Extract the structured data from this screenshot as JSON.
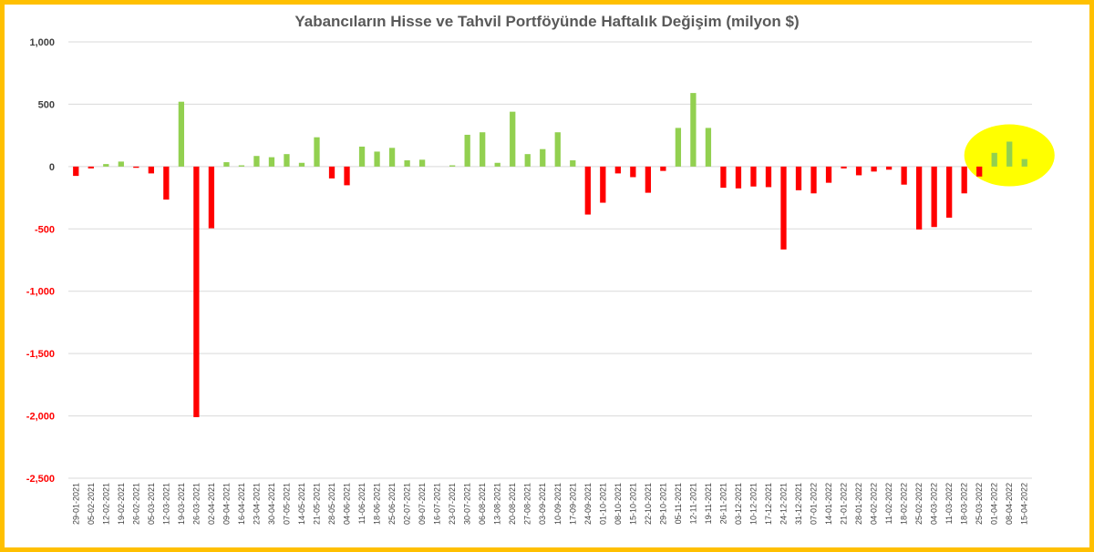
{
  "chart_data": {
    "type": "bar",
    "title": "Yabancıların Hisse ve Tahvil Portföyünde Haftalık Değişim (milyon $)",
    "xlabel": "",
    "ylabel": "",
    "ylim": [
      -2500,
      1000
    ],
    "yticks": [
      1000,
      500,
      0,
      -500,
      -1000,
      -1500,
      -2000,
      -2500
    ],
    "ytick_labels": [
      "1,000",
      "500",
      "0",
      "-500",
      "-1,000",
      "-1,500",
      "-2,000",
      "-2,500"
    ],
    "grid": true,
    "legend": "none",
    "colors": {
      "positive": "#92D050",
      "negative": "#FF0000",
      "grid": "#D9D9D9",
      "frame": "#FFC000",
      "highlight": "#FFFF00",
      "title": "#595959"
    },
    "annotations": [
      {
        "kind": "yellow-ellipse-highlight",
        "covers": [
          "01-04-2022",
          "08-04-2022",
          "15-04-2022"
        ]
      }
    ],
    "tick_labels": [
      "29-01-2021",
      "05-02-2021",
      "12-02-2021",
      "19-02-2021",
      "26-02-2021",
      "05-03-2021",
      "12-03-2021",
      "19-03-2021",
      "26-03-2021",
      "02-04-2021",
      "09-04-2021",
      "16-04-2021",
      "23-04-2021",
      "30-04-2021",
      "07-05-2021",
      "14-05-2021",
      "21-05-2021",
      "28-05-2021",
      "04-06-2021",
      "11-06-2021",
      "18-06-2021",
      "25-06-2021",
      "02-07-2021",
      "09-07-2021",
      "16-07-2021",
      "23-07-2021",
      "30-07-2021",
      "06-08-2021",
      "13-08-2021",
      "20-08-2021",
      "27-08-2021",
      "03-09-2021",
      "10-09-2021",
      "17-09-2021",
      "24-09-2021",
      "01-10-2021",
      "08-10-2021",
      "15-10-2021",
      "22-10-2021",
      "29-10-2021",
      "05-11-2021",
      "12-11-2021",
      "19-11-2021",
      "26-11-2021",
      "03-12-2021",
      "10-12-2021",
      "17-12-2021",
      "24-12-2021",
      "31-12-2021",
      "07-01-2022",
      "14-01-2022",
      "21-01-2022",
      "28-01-2022",
      "04-02-2022",
      "11-02-2022",
      "18-02-2022",
      "25-02-2022",
      "04-03-2022",
      "11-03-2022",
      "18-03-2022",
      "25-03-2022",
      "01-04-2022",
      "08-04-2022",
      "15-04-2022"
    ],
    "values": [
      -75,
      -15,
      20,
      40,
      -10,
      -55,
      -265,
      520,
      -2010,
      -495,
      35,
      10,
      85,
      75,
      100,
      30,
      235,
      -95,
      -150,
      160,
      120,
      150,
      50,
      55,
      0,
      10,
      255,
      275,
      30,
      440,
      100,
      140,
      275,
      50,
      -385,
      -290,
      -55,
      -85,
      -210,
      -35,
      310,
      590,
      310,
      -170,
      -175,
      -160,
      -165,
      -665,
      -190,
      -215,
      -130,
      -15,
      -70,
      -40,
      -25,
      -145,
      -505,
      -485,
      -410,
      -215,
      -80,
      110,
      200,
      60
    ]
  }
}
